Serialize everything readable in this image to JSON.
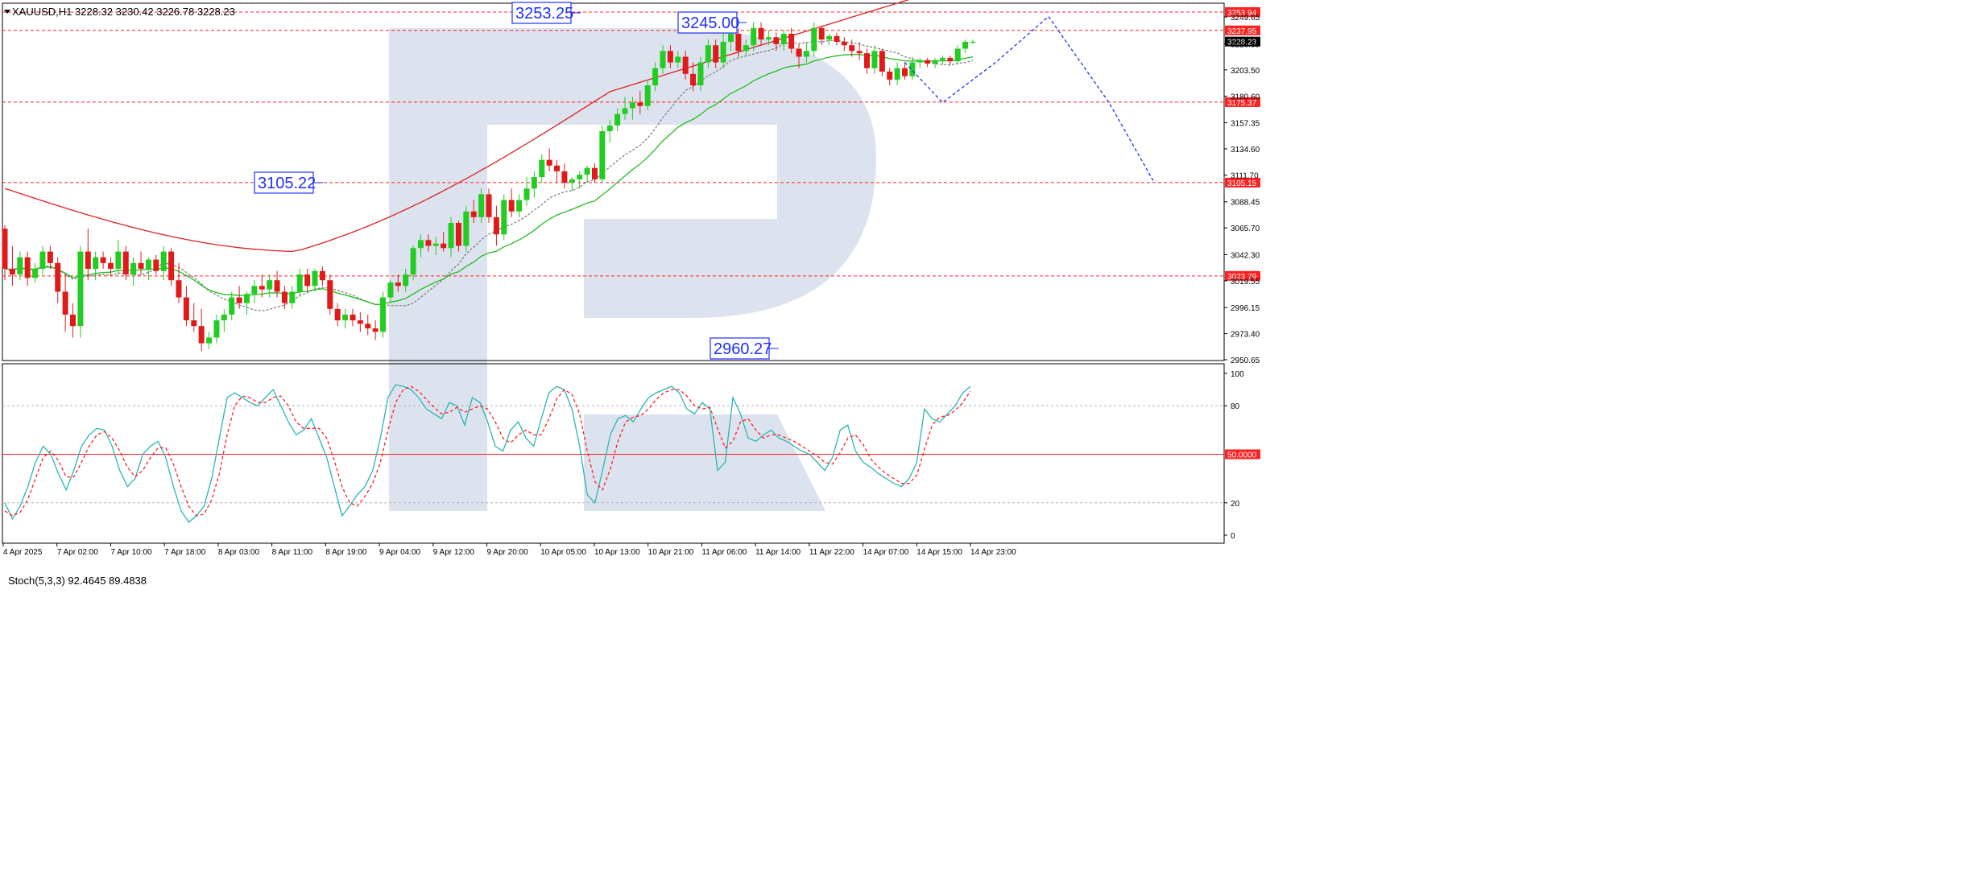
{
  "header": {
    "symbol_line": "XAUUSD,H1  3228.32 3230.42 3226.78 3228.23"
  },
  "colors": {
    "background": "#ffffff",
    "bull": "#22cc22",
    "bear": "#e01a1a",
    "ma_red": "#e02020",
    "ma_green": "#22bb22",
    "ma_gray": "#808080",
    "level_line": "#ff2020",
    "forecast": "#2030ff",
    "stoch_main": "#2ab5b5",
    "stoch_signal": "#ff2020",
    "watermark": "#dce3ee"
  },
  "chart_data": [
    {
      "type": "candlestick",
      "symbol": "XAUUSD",
      "timeframe": "H1",
      "ohlc_current": {
        "open": 3228.32,
        "high": 3230.42,
        "low": 3226.78,
        "close": 3228.23
      },
      "ylim": [
        2950.65,
        3253.94
      ],
      "y_ticks": [
        {
          "value": 3249.65,
          "label": "3249.65"
        },
        {
          "value": 3226.35,
          "label": "3226.35"
        },
        {
          "value": 3203.5,
          "label": "3203.50"
        },
        {
          "value": 3180.6,
          "label": "3180.60"
        },
        {
          "value": 3157.35,
          "label": "3157.35"
        },
        {
          "value": 3134.6,
          "label": "3134.60"
        },
        {
          "value": 3111.7,
          "label": "3111.70"
        },
        {
          "value": 3088.45,
          "label": "3088.45"
        },
        {
          "value": 3065.7,
          "label": "3065.70"
        },
        {
          "value": 3042.3,
          "label": "3042.30"
        },
        {
          "value": 3019.55,
          "label": "3019.55"
        },
        {
          "value": 2996.15,
          "label": "2996.15"
        },
        {
          "value": 2973.4,
          "label": "2973.40"
        },
        {
          "value": 2950.65,
          "label": "2950.65"
        }
      ],
      "x_ticks": [
        "4 Apr 2025",
        "7 Apr 02:00",
        "7 Apr 10:00",
        "7 Apr 18:00",
        "8 Apr 03:00",
        "8 Apr 11:00",
        "8 Apr 19:00",
        "9 Apr 04:00",
        "9 Apr 12:00",
        "9 Apr 20:00",
        "10 Apr 05:00",
        "10 Apr 13:00",
        "10 Apr 21:00",
        "11 Apr 06:00",
        "11 Apr 14:00",
        "11 Apr 22:00",
        "14 Apr 07:00",
        "14 Apr 15:00",
        "14 Apr 23:00"
      ],
      "horizontal_levels": [
        {
          "value": 3253.94,
          "label": "3253.94"
        },
        {
          "value": 3237.95,
          "label": "3237.95"
        },
        {
          "value": 3175.37,
          "label": "3175.37"
        },
        {
          "value": 3105.15,
          "label": "3105.15"
        },
        {
          "value": 3023.79,
          "label": "3023.79"
        }
      ],
      "current_price_label": "3228.23",
      "annotations": [
        {
          "label": "3253.25"
        },
        {
          "label": "3245.00"
        },
        {
          "label": "3105.22"
        },
        {
          "label": "2960.27"
        }
      ],
      "candles": [
        [
          3065,
          3068,
          3020,
          3030
        ],
        [
          3030,
          3050,
          3015,
          3025
        ],
        [
          3025,
          3045,
          3020,
          3040
        ],
        [
          3040,
          3045,
          3015,
          3022
        ],
        [
          3022,
          3035,
          3018,
          3030
        ],
        [
          3030,
          3050,
          3025,
          3045
        ],
        [
          3045,
          3050,
          3030,
          3035
        ],
        [
          3035,
          3040,
          3000,
          3010
        ],
        [
          3010,
          3025,
          2975,
          2990
        ],
        [
          2990,
          3000,
          2970,
          2980
        ],
        [
          2980,
          3050,
          2970,
          3045
        ],
        [
          3045,
          3065,
          3020,
          3030
        ],
        [
          3030,
          3045,
          3020,
          3040
        ],
        [
          3040,
          3045,
          3030,
          3035
        ],
        [
          3035,
          3040,
          3025,
          3030
        ],
        [
          3030,
          3055,
          3025,
          3045
        ],
        [
          3045,
          3050,
          3020,
          3025
        ],
        [
          3025,
          3040,
          3015,
          3035
        ],
        [
          3035,
          3045,
          3025,
          3030
        ],
        [
          3030,
          3040,
          3020,
          3038
        ],
        [
          3038,
          3042,
          3025,
          3028
        ],
        [
          3028,
          3050,
          3020,
          3045
        ],
        [
          3045,
          3048,
          3015,
          3020
        ],
        [
          3020,
          3035,
          3000,
          3005
        ],
        [
          3005,
          3015,
          2980,
          2985
        ],
        [
          2985,
          3000,
          2975,
          2980
        ],
        [
          2980,
          2995,
          2958,
          2965
        ],
        [
          2965,
          2975,
          2960,
          2970
        ],
        [
          2970,
          2990,
          2965,
          2985
        ],
        [
          2985,
          2995,
          2975,
          2990
        ],
        [
          2990,
          3010,
          2985,
          3005
        ],
        [
          3005,
          3015,
          2995,
          3000
        ],
        [
          3000,
          3010,
          2990,
          3008
        ],
        [
          3008,
          3020,
          3000,
          3015
        ],
        [
          3015,
          3025,
          3005,
          3012
        ],
        [
          3012,
          3025,
          3005,
          3020
        ],
        [
          3020,
          3028,
          3005,
          3010
        ],
        [
          3010,
          3015,
          2995,
          3000
        ],
        [
          3000,
          3015,
          2995,
          3010
        ],
        [
          3010,
          3030,
          3005,
          3025
        ],
        [
          3025,
          3030,
          3010,
          3015
        ],
        [
          3015,
          3030,
          3010,
          3028
        ],
        [
          3028,
          3032,
          3015,
          3020
        ],
        [
          3020,
          3025,
          2990,
          2995
        ],
        [
          2995,
          3000,
          2980,
          2985
        ],
        [
          2985,
          2995,
          2978,
          2990
        ],
        [
          2990,
          2995,
          2980,
          2985
        ],
        [
          2985,
          2992,
          2975,
          2982
        ],
        [
          2982,
          2990,
          2972,
          2978
        ],
        [
          2978,
          2985,
          2968,
          2975
        ],
        [
          2975,
          3010,
          2970,
          3005
        ],
        [
          3005,
          3020,
          3000,
          3018
        ],
        [
          3018,
          3025,
          3010,
          3015
        ],
        [
          3015,
          3030,
          3010,
          3025
        ],
        [
          3025,
          3050,
          3020,
          3048
        ],
        [
          3048,
          3060,
          3040,
          3055
        ],
        [
          3055,
          3060,
          3045,
          3050
        ],
        [
          3050,
          3058,
          3042,
          3052
        ],
        [
          3052,
          3062,
          3045,
          3048
        ],
        [
          3048,
          3075,
          3040,
          3070
        ],
        [
          3070,
          3072,
          3045,
          3050
        ],
        [
          3050,
          3085,
          3045,
          3080
        ],
        [
          3080,
          3090,
          3070,
          3075
        ],
        [
          3075,
          3100,
          3070,
          3095
        ],
        [
          3095,
          3100,
          3070,
          3075
        ],
        [
          3075,
          3085,
          3050,
          3060
        ],
        [
          3060,
          3095,
          3055,
          3090
        ],
        [
          3090,
          3100,
          3075,
          3080
        ],
        [
          3080,
          3095,
          3075,
          3090
        ],
        [
          3090,
          3110,
          3085,
          3100
        ],
        [
          3100,
          3115,
          3092,
          3110
        ],
        [
          3110,
          3130,
          3105,
          3125
        ],
        [
          3125,
          3135,
          3115,
          3120
        ],
        [
          3120,
          3125,
          3105,
          3115
        ],
        [
          3115,
          3122,
          3100,
          3105
        ],
        [
          3105,
          3110,
          3098,
          3108
        ],
        [
          3108,
          3115,
          3100,
          3112
        ],
        [
          3112,
          3120,
          3105,
          3118
        ],
        [
          3118,
          3122,
          3105,
          3108
        ],
        [
          3108,
          3155,
          3105,
          3150
        ],
        [
          3150,
          3160,
          3140,
          3155
        ],
        [
          3155,
          3170,
          3150,
          3165
        ],
        [
          3165,
          3180,
          3160,
          3170
        ],
        [
          3170,
          3180,
          3160,
          3175
        ],
        [
          3175,
          3185,
          3165,
          3172
        ],
        [
          3172,
          3195,
          3168,
          3190
        ],
        [
          3190,
          3210,
          3185,
          3205
        ],
        [
          3205,
          3225,
          3200,
          3220
        ],
        [
          3220,
          3225,
          3205,
          3210
        ],
        [
          3210,
          3220,
          3205,
          3215
        ],
        [
          3215,
          3220,
          3195,
          3200
        ],
        [
          3200,
          3210,
          3185,
          3190
        ],
        [
          3190,
          3215,
          3185,
          3210
        ],
        [
          3210,
          3230,
          3205,
          3225
        ],
        [
          3225,
          3230,
          3205,
          3210
        ],
        [
          3210,
          3235,
          3205,
          3228
        ],
        [
          3228,
          3240,
          3220,
          3235
        ],
        [
          3235,
          3240,
          3215,
          3220
        ],
        [
          3220,
          3230,
          3215,
          3225
        ],
        [
          3225,
          3245,
          3220,
          3240
        ],
        [
          3240,
          3245,
          3225,
          3230
        ],
        [
          3230,
          3238,
          3225,
          3232
        ],
        [
          3232,
          3236,
          3220,
          3226
        ],
        [
          3226,
          3238,
          3220,
          3235
        ],
        [
          3235,
          3240,
          3218,
          3222
        ],
        [
          3222,
          3226,
          3205,
          3215
        ],
        [
          3215,
          3228,
          3210,
          3220
        ],
        [
          3220,
          3245,
          3215,
          3240
        ],
        [
          3240,
          3242,
          3225,
          3230
        ],
        [
          3230,
          3235,
          3225,
          3233
        ],
        [
          3233,
          3236,
          3225,
          3228
        ],
        [
          3228,
          3232,
          3220,
          3225
        ],
        [
          3225,
          3230,
          3215,
          3220
        ],
        [
          3220,
          3228,
          3212,
          3218
        ],
        [
          3218,
          3222,
          3200,
          3205
        ],
        [
          3205,
          3225,
          3200,
          3220
        ],
        [
          3220,
          3222,
          3198,
          3202
        ],
        [
          3202,
          3205,
          3190,
          3195
        ],
        [
          3195,
          3210,
          3190,
          3205
        ],
        [
          3205,
          3210,
          3195,
          3198
        ],
        [
          3198,
          3215,
          3195,
          3210
        ],
        [
          3210,
          3214,
          3205,
          3212
        ],
        [
          3212,
          3214,
          3206,
          3209
        ],
        [
          3209,
          3214,
          3205,
          3212
        ],
        [
          3212,
          3216,
          3208,
          3214
        ],
        [
          3214,
          3216,
          3208,
          3211
        ],
        [
          3211,
          3225,
          3208,
          3222
        ],
        [
          3222,
          3230,
          3218,
          3228
        ],
        [
          3228,
          3230,
          3226,
          3228
        ]
      ],
      "forecast_path": [
        {
          "time_index": 119,
          "value": 3210
        },
        {
          "time_index": 124,
          "value": 3175
        },
        {
          "time_index": 131,
          "value": 3210
        },
        {
          "time_index": 138,
          "value": 3250
        },
        {
          "time_index": 146,
          "value": 3175
        },
        {
          "time_index": 152,
          "value": 3105
        }
      ]
    },
    {
      "type": "line",
      "indicator": "Stoch(5,3,3)",
      "title": "Stoch(5,3,3) 92.4645 89.4838",
      "values_current": {
        "main": 92.4645,
        "signal": 89.4838
      },
      "ylim": [
        0,
        100
      ],
      "y_ticks": [
        "100",
        "80",
        "20",
        "0"
      ],
      "levels": [
        {
          "value": 80
        },
        {
          "value": 50,
          "label": "50.0000"
        },
        {
          "value": 20
        }
      ],
      "series": [
        {
          "name": "Main",
          "values": [
            20,
            10,
            18,
            30,
            45,
            55,
            50,
            38,
            28,
            40,
            55,
            62,
            66,
            65,
            55,
            40,
            30,
            35,
            50,
            55,
            58,
            48,
            30,
            15,
            8,
            12,
            18,
            35,
            60,
            85,
            88,
            85,
            82,
            80,
            85,
            90,
            80,
            70,
            62,
            65,
            72,
            60,
            48,
            30,
            12,
            18,
            25,
            30,
            40,
            60,
            85,
            93,
            92,
            90,
            85,
            78,
            75,
            72,
            82,
            80,
            68,
            85,
            82,
            70,
            55,
            52,
            65,
            70,
            60,
            55,
            72,
            88,
            92,
            90,
            78,
            55,
            25,
            20,
            40,
            62,
            72,
            74,
            70,
            78,
            85,
            88,
            90,
            92,
            88,
            78,
            75,
            82,
            78,
            40,
            45,
            85,
            75,
            60,
            58,
            62,
            65,
            60,
            58,
            55,
            52,
            50,
            45,
            40,
            48,
            65,
            68,
            52,
            45,
            42,
            38,
            35,
            32,
            30,
            35,
            45,
            78,
            72,
            70,
            75,
            80,
            88,
            92
          ],
          "color": "#2ab5b5"
        },
        {
          "name": "Signal",
          "values": [
            15,
            12,
            14,
            22,
            35,
            48,
            52,
            46,
            36,
            36,
            45,
            55,
            62,
            64,
            60,
            52,
            42,
            36,
            40,
            48,
            54,
            54,
            44,
            30,
            18,
            12,
            13,
            22,
            38,
            62,
            80,
            86,
            85,
            82,
            82,
            85,
            86,
            80,
            70,
            66,
            66,
            66,
            60,
            46,
            30,
            20,
            18,
            24,
            32,
            45,
            65,
            82,
            90,
            92,
            89,
            84,
            79,
            75,
            76,
            79,
            76,
            78,
            80,
            78,
            70,
            60,
            57,
            62,
            65,
            62,
            62,
            72,
            84,
            90,
            87,
            75,
            52,
            33,
            28,
            41,
            58,
            70,
            73,
            74,
            78,
            84,
            88,
            90,
            90,
            86,
            80,
            78,
            79,
            66,
            54,
            58,
            70,
            72,
            65,
            60,
            62,
            62,
            60,
            58,
            55,
            52,
            49,
            45,
            44,
            51,
            60,
            62,
            56,
            47,
            42,
            38,
            35,
            32,
            32,
            37,
            53,
            68,
            73,
            74,
            77,
            82,
            89
          ],
          "color": "#ff2020"
        }
      ]
    }
  ]
}
